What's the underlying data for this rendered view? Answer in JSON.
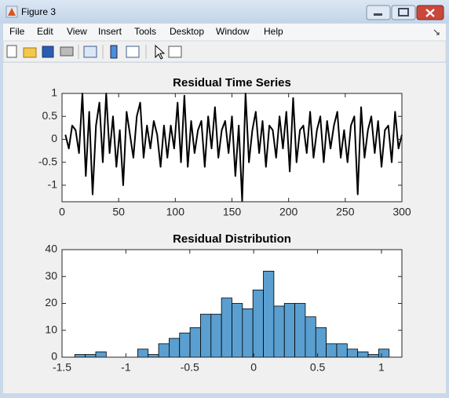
{
  "window": {
    "title": "Figure 3",
    "menu": [
      "File",
      "Edit",
      "View",
      "Insert",
      "Tools",
      "Desktop",
      "Window",
      "Help"
    ]
  },
  "chart_data": [
    {
      "type": "line",
      "title": "Residual Time Series",
      "color": "#000000",
      "x": [
        3,
        6,
        9,
        12,
        15,
        18,
        21,
        24,
        27,
        30,
        33,
        36,
        39,
        42,
        45,
        48,
        51,
        54,
        57,
        60,
        63,
        66,
        69,
        72,
        75,
        78,
        81,
        84,
        87,
        90,
        93,
        96,
        99,
        102,
        105,
        108,
        111,
        114,
        117,
        120,
        123,
        126,
        129,
        132,
        135,
        138,
        141,
        144,
        147,
        150,
        153,
        156,
        159,
        162,
        165,
        168,
        171,
        174,
        177,
        180,
        183,
        186,
        189,
        192,
        195,
        198,
        201,
        204,
        207,
        210,
        213,
        216,
        219,
        222,
        225,
        228,
        231,
        234,
        237,
        240,
        243,
        246,
        249,
        252,
        255,
        258,
        261,
        264,
        267,
        270,
        273,
        276,
        279,
        282,
        285,
        288,
        291,
        294,
        297,
        300
      ],
      "values": [
        0.1,
        -0.2,
        0.3,
        0.2,
        -0.3,
        1.0,
        -0.8,
        0.6,
        -1.2,
        0.3,
        0.8,
        -0.5,
        1.0,
        -0.3,
        0.5,
        -0.6,
        0.2,
        -1.0,
        0.6,
        0.1,
        -0.4,
        0.5,
        0.8,
        -0.4,
        0.3,
        -0.2,
        0.4,
        0.1,
        -0.6,
        0.3,
        -0.4,
        0.3,
        -0.2,
        0.8,
        -0.5,
        0.95,
        -0.6,
        0.4,
        -0.3,
        0.2,
        0.4,
        -0.6,
        0.5,
        -0.2,
        0.7,
        -0.4,
        0.2,
        0.4,
        -0.3,
        0.5,
        -0.8,
        0.3,
        -1.35,
        1.0,
        -0.5,
        0.2,
        0.6,
        -0.3,
        0.4,
        -0.6,
        0.3,
        0.2,
        -0.4,
        0.5,
        -0.2,
        0.6,
        -0.7,
        0.9,
        -0.5,
        0.2,
        0.3,
        -0.3,
        0.6,
        -0.4,
        0.2,
        0.5,
        -0.5,
        0.4,
        -0.2,
        0.3,
        0.6,
        -0.4,
        0.2,
        -0.5,
        0.3,
        0.5,
        -1.2,
        0.7,
        -0.4,
        0.2,
        0.5,
        -0.3,
        0.4,
        -0.6,
        0.2,
        0.3,
        -0.5,
        0.6,
        -0.2,
        0.1
      ],
      "xlim": [
        0,
        300
      ],
      "xticks": [
        0,
        50,
        100,
        150,
        200,
        250,
        300
      ],
      "ylim": [
        -1.36,
        1
      ],
      "yticks": [
        -1,
        -0.5,
        0,
        0.5,
        1
      ]
    },
    {
      "type": "histogram",
      "title": "Residual Distribution",
      "color": "#5a9fd0",
      "bins": [
        -1.4,
        -1.318,
        -1.236,
        -1.154,
        -1.072,
        -0.99,
        -0.908,
        -0.826,
        -0.744,
        -0.662,
        -0.58,
        -0.498,
        -0.416,
        -0.334,
        -0.252,
        -0.17,
        -0.088,
        -0.006,
        0.076,
        0.158,
        0.24,
        0.322,
        0.404,
        0.486,
        0.568,
        0.65,
        0.732,
        0.814,
        0.896,
        0.978,
        1.06
      ],
      "values": [
        1,
        1,
        2,
        0,
        0,
        0,
        3,
        1,
        5,
        7,
        9,
        11,
        16,
        16,
        22,
        20,
        18,
        25,
        32,
        19,
        20,
        20,
        15,
        11,
        5,
        5,
        3,
        2,
        1,
        3
      ],
      "xlim": [
        -1.5,
        1.16
      ],
      "xticks": [
        -1.5,
        -1,
        -0.5,
        0,
        0.5,
        1
      ],
      "ylim": [
        0,
        40
      ],
      "yticks": [
        0,
        10,
        20,
        30,
        40
      ]
    }
  ]
}
